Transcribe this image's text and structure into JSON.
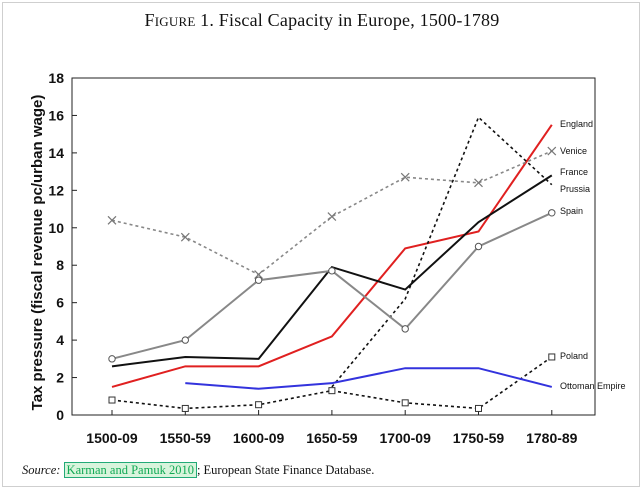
{
  "figure": {
    "label": "Figure 1.",
    "title": "Fiscal Capacity in Europe, 1500-1789"
  },
  "source": {
    "label": "Source:",
    "cite_1": "Karman and Pamuk",
    "cite_2": "2010",
    "rest": "; European State Finance Database."
  },
  "chart_data": {
    "type": "line",
    "title": "Fiscal Capacity in Europe, 1500-1789",
    "xlabel": "",
    "ylabel": "Tax pressure (fiscal revenue pc/urban wage)",
    "categories": [
      "1500-09",
      "1550-59",
      "1600-09",
      "1650-59",
      "1700-09",
      "1750-59",
      "1780-89"
    ],
    "ylim": [
      0,
      18
    ],
    "yticks": [
      0,
      2,
      4,
      6,
      8,
      10,
      12,
      14,
      16,
      18
    ],
    "grid": false,
    "series": [
      {
        "name": "England",
        "color": "#e02020",
        "dash": "solid",
        "marker": "none",
        "values": [
          1.5,
          2.6,
          2.6,
          4.2,
          8.9,
          9.8,
          15.5
        ]
      },
      {
        "name": "Venice",
        "color": "#888888",
        "dash": "dotted",
        "marker": "x",
        "values": [
          10.4,
          9.5,
          7.5,
          10.6,
          12.7,
          12.4,
          14.1
        ]
      },
      {
        "name": "France",
        "color": "#111111",
        "dash": "solid",
        "marker": "none",
        "values": [
          2.6,
          3.1,
          3.0,
          7.9,
          6.7,
          10.3,
          12.8
        ]
      },
      {
        "name": "Prussia",
        "color": "#111111",
        "dash": "dotted",
        "marker": "none",
        "values": [
          null,
          null,
          null,
          1.5,
          6.2,
          15.9,
          12.3
        ]
      },
      {
        "name": "Spain",
        "color": "#888888",
        "dash": "solid",
        "marker": "circle",
        "values": [
          3.0,
          4.0,
          7.2,
          7.7,
          4.6,
          9.0,
          10.8
        ]
      },
      {
        "name": "Poland",
        "color": "#111111",
        "dash": "dotted",
        "marker": "square",
        "values": [
          0.8,
          0.35,
          0.55,
          1.3,
          0.65,
          0.35,
          3.1
        ]
      },
      {
        "name": "Ottoman Empire",
        "color": "#3333dd",
        "dash": "solid",
        "marker": "none",
        "values": [
          null,
          1.7,
          1.4,
          1.7,
          2.5,
          2.5,
          1.5
        ]
      }
    ],
    "labels": [
      {
        "series": "England",
        "text": "England"
      },
      {
        "series": "Venice",
        "text": "Venice"
      },
      {
        "series": "France",
        "text": "France"
      },
      {
        "series": "Prussia",
        "text": "Prussia"
      },
      {
        "series": "Spain",
        "text": "Spain"
      },
      {
        "series": "Poland",
        "text": "Poland"
      },
      {
        "series": "Ottoman Empire",
        "text": "Ottoman Empire"
      }
    ]
  }
}
